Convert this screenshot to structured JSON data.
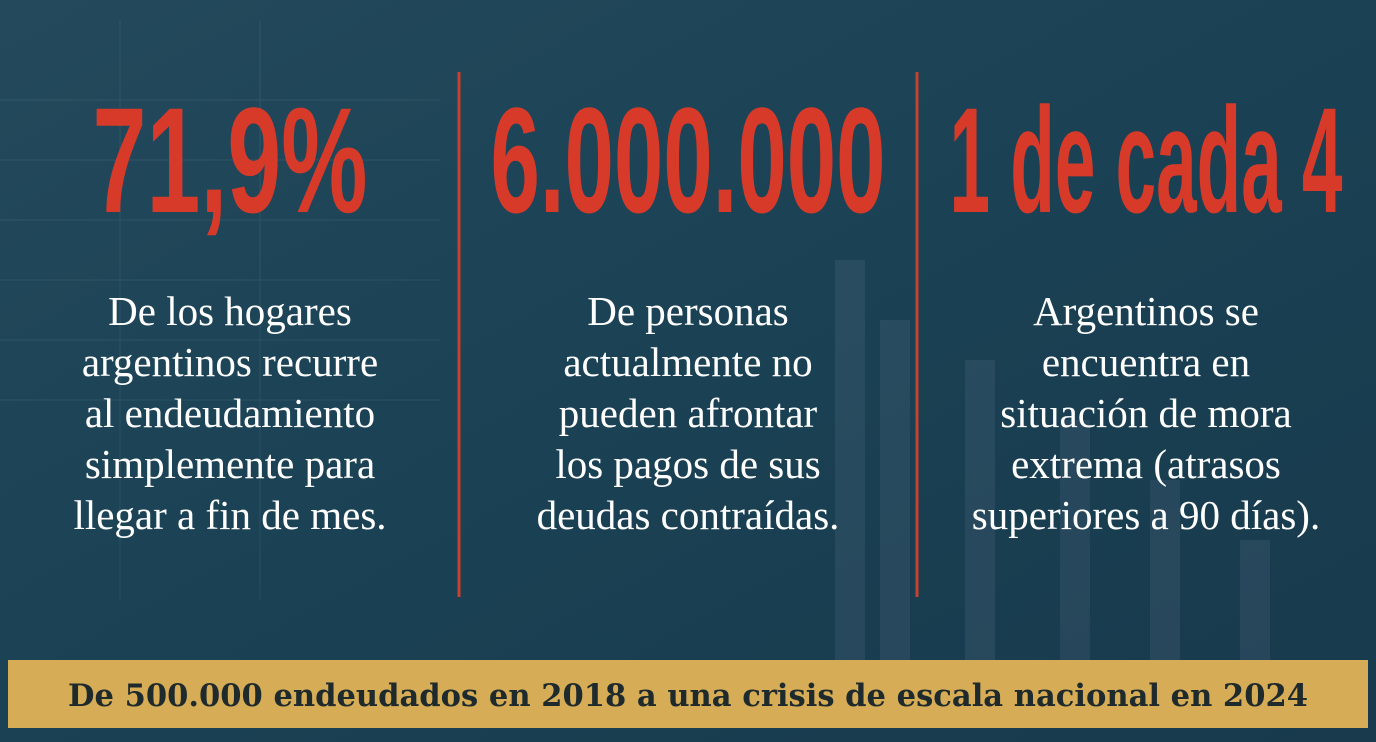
{
  "stats": [
    {
      "value": "71,9%",
      "lines": [
        "De los hogares",
        "argentinos recurre",
        "al endeudamiento",
        "simplemente para",
        "llegar a fin de mes."
      ]
    },
    {
      "value": "6.000.000",
      "lines": [
        "De personas",
        "actualmente no",
        "pueden afrontar",
        "los pagos de sus",
        "deudas contraídas."
      ]
    },
    {
      "value": "1 de cada 4",
      "lines": [
        "Argentinos se",
        "encuentra en",
        "situación de mora",
        "extrema (atrasos",
        "superiores a 90 días)."
      ]
    }
  ],
  "footer": {
    "text": "De 500.000 endeudados en 2018 a una crisis de escala nacional en 2024"
  }
}
